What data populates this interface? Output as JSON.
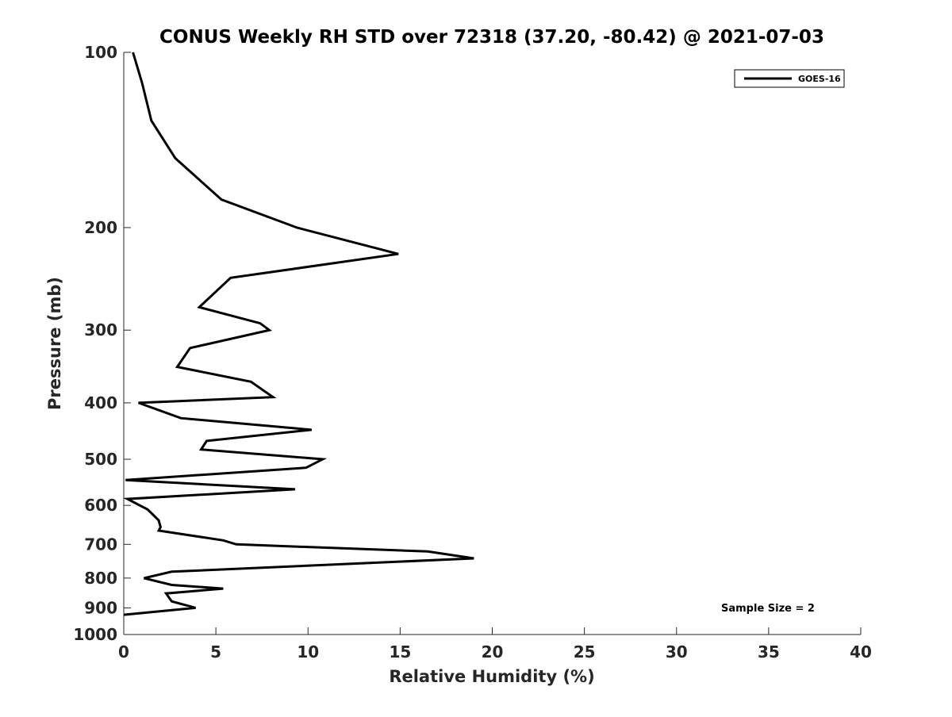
{
  "chart_data": {
    "type": "line",
    "title": "CONUS Weekly RH STD over 72318 (37.20, -80.42) @ 2021-07-03",
    "xlabel": "Relative Humidity (%)",
    "ylabel": "Pressure (mb)",
    "xlim": [
      0,
      40
    ],
    "ylim": [
      100,
      1000
    ],
    "y_scale": "log",
    "y_direction": "reversed",
    "xticks": [
      "0",
      "5",
      "10",
      "15",
      "20",
      "25",
      "30",
      "35",
      "40"
    ],
    "yticks": [
      "100",
      "200",
      "300",
      "400",
      "500",
      "600",
      "700",
      "800",
      "900",
      "1000"
    ],
    "grid": false,
    "legend_position": "top-right",
    "series_color": "#000000",
    "series": [
      {
        "name": "GOES-16",
        "x": [
          0.5,
          1.0,
          1.5,
          2.8,
          5.3,
          9.4,
          14.9,
          5.8,
          4.1,
          7.4,
          7.9,
          3.6,
          2.9,
          6.9,
          8.1,
          0.8,
          3.1,
          10.2,
          4.5,
          4.2,
          10.8,
          9.9,
          0.1,
          9.3,
          0.2,
          1.3,
          1.9,
          2.0,
          1.9,
          5.4,
          6.1,
          16.5,
          19.0,
          2.6,
          1.1,
          2.6,
          5.4,
          2.3,
          2.6,
          3.9,
          0.0
        ],
        "y": [
          100,
          113,
          131,
          152,
          179,
          200,
          222,
          244,
          274,
          292,
          300,
          322,
          347,
          368,
          391,
          400,
          425,
          445,
          465,
          481,
          500,
          517,
          543,
          563,
          585,
          610,
          637,
          654,
          663,
          689,
          700,
          720,
          740,
          780,
          800,
          822,
          834,
          850,
          877,
          900,
          925
        ]
      }
    ],
    "annotations": [
      "Sample Size = 2"
    ]
  }
}
